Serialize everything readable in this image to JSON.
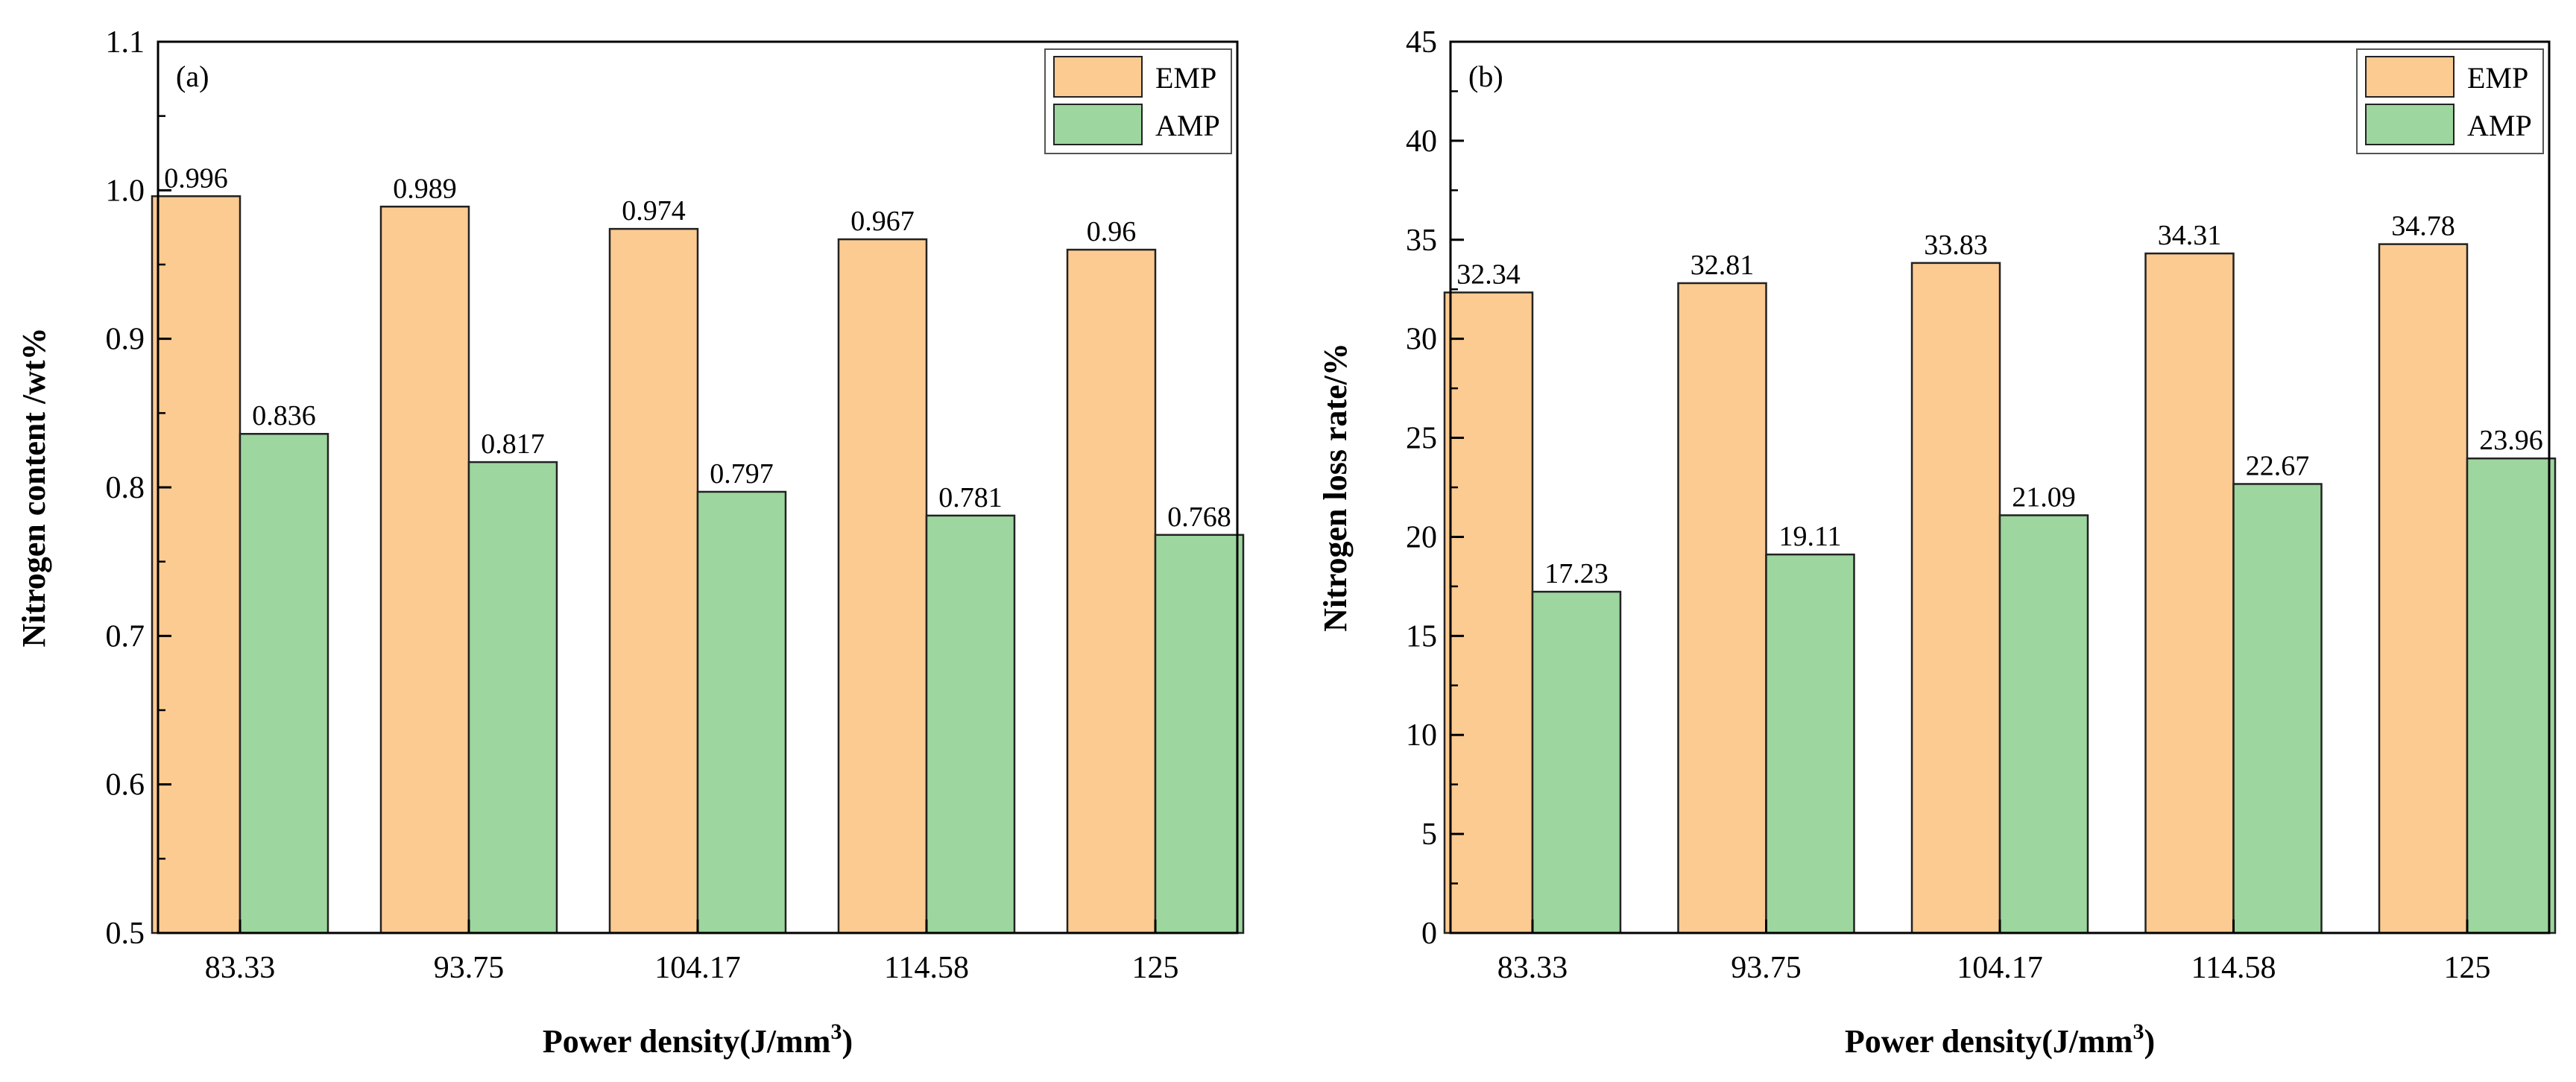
{
  "colors": {
    "emp": "#FCCB92",
    "amp": "#9DD69E",
    "axis": "#000000",
    "edge": "#222222"
  },
  "chart_data": [
    {
      "type": "bar",
      "panel_label": "(a)",
      "categories": [
        "83.33",
        "93.75",
        "104.17",
        "114.58",
        "125"
      ],
      "series": [
        {
          "name": "EMP",
          "values": [
            0.996,
            0.989,
            0.974,
            0.967,
            0.96
          ],
          "labels": [
            "0.996",
            "0.989",
            "0.974",
            "0.967",
            "0.96"
          ]
        },
        {
          "name": "AMP",
          "values": [
            0.836,
            0.817,
            0.797,
            0.781,
            0.768
          ],
          "labels": [
            "0.836",
            "0.817",
            "0.797",
            "0.781",
            "0.768"
          ]
        }
      ],
      "xlabel_main": "Power density(J/mm",
      "xlabel_sup": "3",
      "xlabel_end": ")",
      "ylabel": "Nitrogen content /wt%",
      "ylim": [
        0.5,
        1.1
      ],
      "yticks": [
        0.5,
        0.6,
        0.7,
        0.8,
        0.9,
        1.0,
        1.1
      ],
      "ytick_labels": [
        "0.5",
        "0.6",
        "0.7",
        "0.8",
        "0.9",
        "1.0",
        "1.1"
      ],
      "legend_position": "top-right"
    },
    {
      "type": "bar",
      "panel_label": "(b)",
      "categories": [
        "83.33",
        "93.75",
        "104.17",
        "114.58",
        "125"
      ],
      "series": [
        {
          "name": "EMP",
          "values": [
            32.34,
            32.81,
            33.83,
            34.31,
            34.78
          ],
          "labels": [
            "32.34",
            "32.81",
            "33.83",
            "34.31",
            "34.78"
          ]
        },
        {
          "name": "AMP",
          "values": [
            17.23,
            19.11,
            21.09,
            22.67,
            23.96
          ],
          "labels": [
            "17.23",
            "19.11",
            "21.09",
            "22.67",
            "23.96"
          ]
        }
      ],
      "xlabel_main": "Power density(J/mm",
      "xlabel_sup": "3",
      "xlabel_end": ")",
      "ylabel": "Nitrogen loss rate/%",
      "ylim": [
        0,
        45
      ],
      "yticks": [
        0,
        5,
        10,
        15,
        20,
        25,
        30,
        35,
        40,
        45
      ],
      "ytick_labels": [
        "0",
        "5",
        "10",
        "15",
        "20",
        "25",
        "30",
        "35",
        "40",
        "45"
      ],
      "legend_position": "top-right"
    }
  ]
}
